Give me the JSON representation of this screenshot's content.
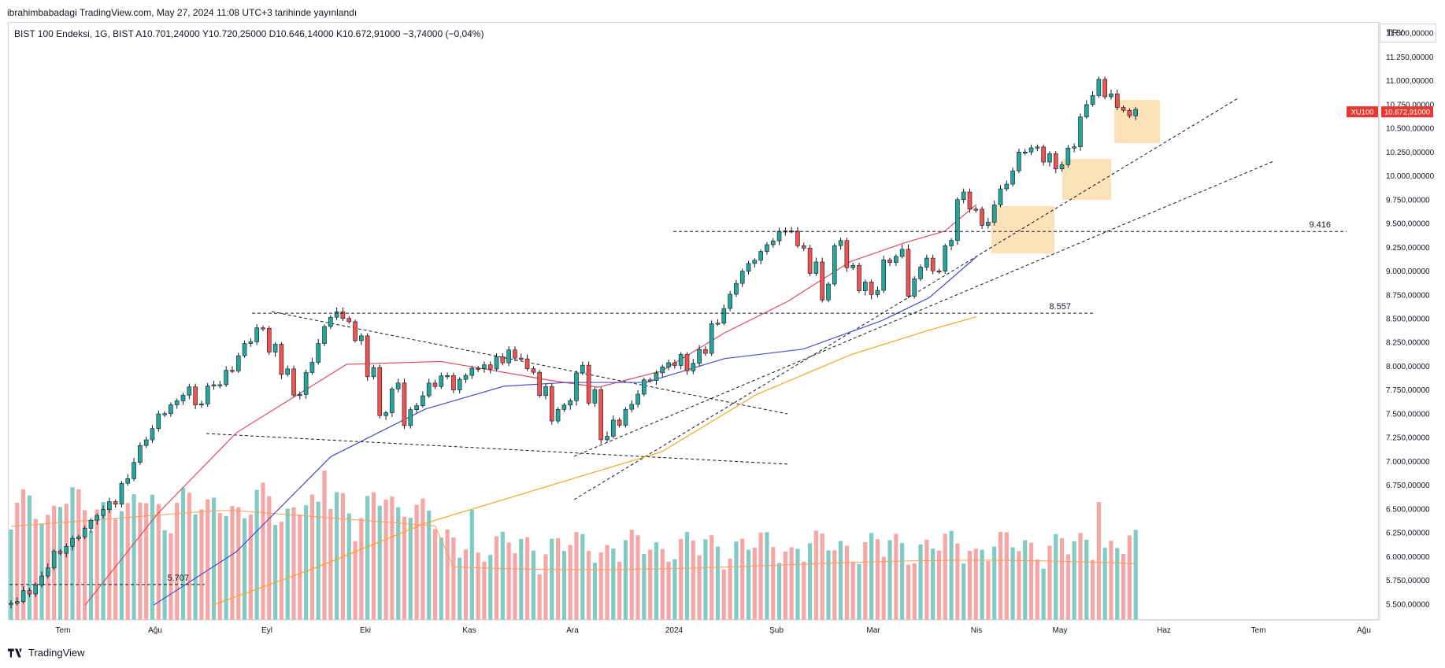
{
  "header": {
    "text": "ibrahimbabadagi TradingView.com, May 27, 2024 11:08 UTC+3 tarihinde yayınlandı"
  },
  "legend": {
    "text": "BIST 100 Endeksi, 1G, BIST  A10.701,24000  Y10.720,25000  D10.646,14000  K10.672,91000  −3,74000 (−0,04%)"
  },
  "currency": "TRY",
  "footer": {
    "brand": "TradingView"
  },
  "colors": {
    "up": "#26a69a",
    "down": "#ef5350",
    "upVol": "#80cbc4",
    "downVol": "#f7a6a6",
    "ma_red": "#e04a5f",
    "ma_blue": "#4a4ad0",
    "ma_orange": "#f5a623",
    "highlight": "#fcd9a8",
    "price_tag": "#e53935"
  },
  "chart_data": {
    "type": "candlestick",
    "symbol": "XU100",
    "last_price": "10.672,91000",
    "ylim": [
      5400,
      11600
    ],
    "yticks": [
      "11.500,00000",
      "11.250,00000",
      "11.000,00000",
      "10.750,00000",
      "10.500,00000",
      "10.250,00000",
      "10.000,00000",
      "9.750,00000",
      "9.500,00000",
      "9.250,00000",
      "9.000,00000",
      "8.750,00000",
      "8.500,00000",
      "8.250,00000",
      "8.000,00000",
      "7.750,00000",
      "7.500,00000",
      "7.250,00000",
      "7.000,00000",
      "6.750,00000",
      "6.500,00000",
      "6.250,00000",
      "6.000,00000",
      "5.750,00000",
      "5.500,00000"
    ],
    "xticks": [
      "Tem",
      "Ağu",
      "Eyl",
      "Eki",
      "Kas",
      "Ara",
      "2024",
      "Şub",
      "Mar",
      "Nis",
      "May",
      "Haz",
      "Tem",
      "Ağu"
    ],
    "levels": [
      {
        "label": "9.416",
        "value": 9416
      },
      {
        "label": "8.557",
        "value": 8557
      },
      {
        "label": "5.707",
        "value": 5707
      }
    ],
    "close_path": [
      5520,
      5620,
      5760,
      5990,
      6080,
      6200,
      6350,
      6470,
      6560,
      6800,
      7100,
      7300,
      7500,
      7620,
      7750,
      7600,
      7800,
      7900,
      8050,
      8250,
      8400,
      8200,
      7950,
      7700,
      8000,
      8350,
      8550,
      8480,
      8300,
      7950,
      7500,
      7800,
      7480,
      7650,
      7800,
      7900,
      7820,
      7950,
      8000,
      8050,
      8120,
      8080,
      7950,
      7750,
      7500,
      7620,
      7980,
      7700,
      7250,
      7400,
      7580,
      7800,
      7900,
      8020,
      8080,
      8000,
      8150,
      8450,
      8700,
      8950,
      9100,
      9250,
      9380,
      9420,
      9250,
      9050,
      8800,
      9300,
      9050,
      8850,
      8780,
      9100,
      9200,
      8850,
      9100,
      9000,
      9300,
      9800,
      9650,
      9500,
      9800,
      10000,
      10250,
      10300,
      10200,
      10100,
      10300,
      10700,
      10950,
      10850,
      10700,
      10673
    ],
    "ma_red": [
      [
        108,
        5490
      ],
      [
        200,
        6450
      ],
      [
        300,
        7300
      ],
      [
        440,
        8020
      ],
      [
        560,
        8050
      ],
      [
        700,
        7850
      ],
      [
        760,
        7780
      ],
      [
        840,
        7950
      ],
      [
        920,
        8350
      ],
      [
        1000,
        8680
      ],
      [
        1080,
        9100
      ],
      [
        1150,
        9300
      ],
      [
        1200,
        9420
      ],
      [
        1240,
        9700
      ]
    ],
    "ma_blue": [
      [
        195,
        5490
      ],
      [
        300,
        6050
      ],
      [
        420,
        7050
      ],
      [
        540,
        7550
      ],
      [
        640,
        7790
      ],
      [
        720,
        7830
      ],
      [
        820,
        7830
      ],
      [
        920,
        8080
      ],
      [
        1020,
        8180
      ],
      [
        1120,
        8480
      ],
      [
        1180,
        8720
      ],
      [
        1240,
        9150
      ]
    ],
    "ma_orange": [
      [
        270,
        5490
      ],
      [
        400,
        5880
      ],
      [
        540,
        6350
      ],
      [
        700,
        6750
      ],
      [
        840,
        7100
      ],
      [
        960,
        7700
      ],
      [
        1080,
        8120
      ],
      [
        1180,
        8380
      ],
      [
        1240,
        8520
      ]
    ]
  }
}
